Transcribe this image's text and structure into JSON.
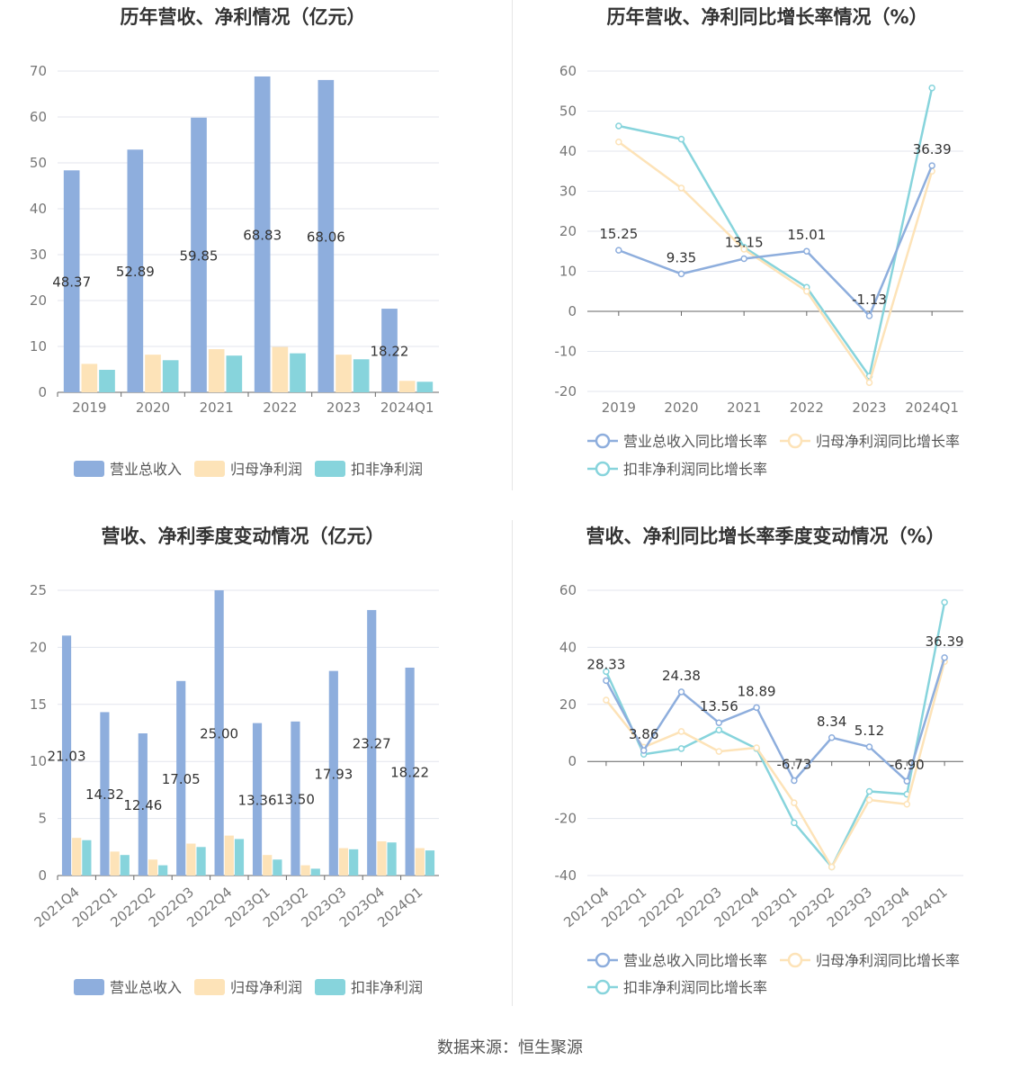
{
  "source_note": "数据来源：恒生聚源",
  "colors": {
    "revenue": "#8eaedd",
    "parent_np": "#fde3b8",
    "deducted_np": "#87d4dc",
    "grid": "#e3e6ee",
    "axis_text": "#777777",
    "title": "#333333"
  },
  "chart_data": [
    {
      "type": "bar",
      "title": "历年营收、净利情况（亿元）",
      "categories": [
        "2019",
        "2020",
        "2021",
        "2022",
        "2023",
        "2024Q1"
      ],
      "ylim": [
        0,
        70
      ],
      "yticks": [
        "0",
        "10",
        "20",
        "30",
        "40",
        "50",
        "60",
        "70"
      ],
      "series": [
        {
          "name": "营业总收入",
          "values": [
            48.37,
            52.89,
            59.85,
            68.83,
            68.06,
            18.22
          ],
          "labels": [
            "48.37",
            "52.89",
            "59.85",
            "68.83",
            "68.06",
            "18.22"
          ]
        },
        {
          "name": "归母净利润",
          "values": [
            6.2,
            8.2,
            9.4,
            9.9,
            8.2,
            2.5
          ]
        },
        {
          "name": "扣非净利润",
          "values": [
            4.9,
            7.0,
            8.0,
            8.5,
            7.2,
            2.3
          ]
        }
      ],
      "legend": "bottom",
      "grid": true
    },
    {
      "type": "line",
      "title": "历年营收、净利同比增长率情况（%）",
      "categories": [
        "2019",
        "2020",
        "2021",
        "2022",
        "2023",
        "2024Q1"
      ],
      "ylim": [
        -20,
        60
      ],
      "yticks": [
        "-20",
        "-10",
        "0",
        "10",
        "20",
        "30",
        "40",
        "50",
        "60"
      ],
      "series": [
        {
          "name": "营业总收入同比增长率",
          "values": [
            15.25,
            9.35,
            13.15,
            15.01,
            -1.13,
            36.39
          ],
          "labels": [
            "15.25",
            "9.35",
            "13.15",
            "15.01",
            "-1.13",
            "36.39"
          ]
        },
        {
          "name": "归母净利润同比增长率",
          "values": [
            42.3,
            30.8,
            15.5,
            5.0,
            -17.8,
            35.0
          ]
        },
        {
          "name": "扣非净利润同比增长率",
          "values": [
            46.3,
            43.0,
            16.0,
            6.0,
            -16.2,
            55.8
          ]
        }
      ],
      "legend": "bottom",
      "grid": true
    },
    {
      "type": "bar",
      "title": "营收、净利季度变动情况（亿元）",
      "categories": [
        "2021Q4",
        "2022Q1",
        "2022Q2",
        "2022Q3",
        "2022Q4",
        "2023Q1",
        "2023Q2",
        "2023Q3",
        "2023Q4",
        "2024Q1"
      ],
      "ylim": [
        0,
        25
      ],
      "yticks": [
        "0",
        "5",
        "10",
        "15",
        "20",
        "25"
      ],
      "series": [
        {
          "name": "营业总收入",
          "values": [
            21.03,
            14.32,
            12.46,
            17.05,
            25.0,
            13.36,
            13.5,
            17.93,
            23.27,
            18.22
          ],
          "labels": [
            "21.03",
            "14.32",
            "12.46",
            "17.05",
            "25.00",
            "13.36",
            "13.50",
            "17.93",
            "23.27",
            "18.22"
          ]
        },
        {
          "name": "归母净利润",
          "values": [
            3.3,
            2.1,
            1.4,
            2.8,
            3.5,
            1.8,
            0.9,
            2.4,
            3.0,
            2.4
          ]
        },
        {
          "name": "扣非净利润",
          "values": [
            3.1,
            1.8,
            0.9,
            2.5,
            3.2,
            1.4,
            0.6,
            2.3,
            2.9,
            2.2
          ]
        }
      ],
      "legend": "bottom",
      "grid": true
    },
    {
      "type": "line",
      "title": "营收、净利同比增长率季度变动情况（%）",
      "categories": [
        "2021Q4",
        "2022Q1",
        "2022Q2",
        "2022Q3",
        "2022Q4",
        "2023Q1",
        "2023Q2",
        "2023Q3",
        "2023Q4",
        "2024Q1"
      ],
      "ylim": [
        -40,
        60
      ],
      "yticks": [
        "-40",
        "-20",
        "0",
        "20",
        "40",
        "60"
      ],
      "series": [
        {
          "name": "营业总收入同比增长率",
          "values": [
            28.33,
            3.86,
            24.38,
            13.56,
            18.89,
            -6.73,
            8.34,
            5.12,
            -6.9,
            36.39
          ],
          "labels": [
            "28.33",
            "3.86",
            "24.38",
            "13.56",
            "18.89",
            "-6.73",
            "8.34",
            "5.12",
            "-6.90",
            "36.39"
          ]
        },
        {
          "name": "归母净利润同比增长率",
          "values": [
            21.5,
            5.0,
            10.5,
            3.5,
            4.8,
            -14.5,
            -37.0,
            -13.5,
            -15.0,
            35.0
          ]
        },
        {
          "name": "扣非净利润同比增长率",
          "values": [
            31.5,
            2.5,
            4.5,
            11.0,
            4.5,
            -21.5,
            -37.0,
            -10.5,
            -11.5,
            55.8
          ]
        }
      ],
      "legend": "bottom",
      "grid": true
    }
  ]
}
